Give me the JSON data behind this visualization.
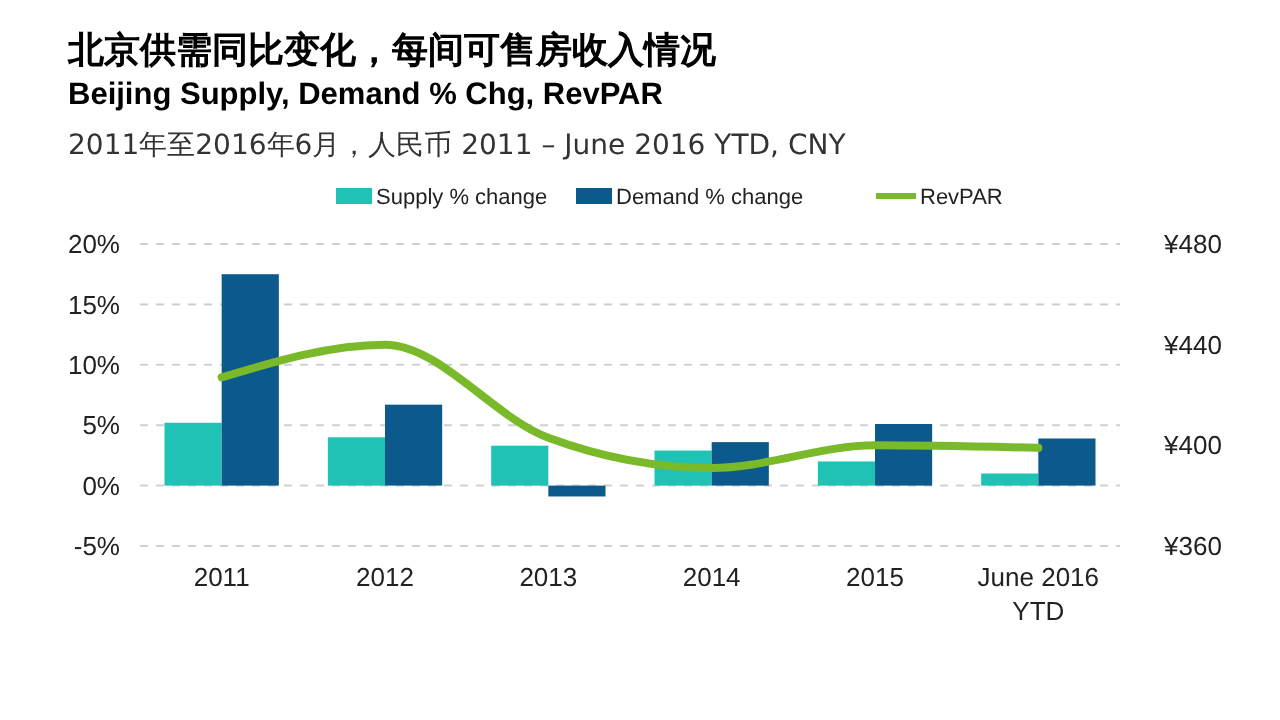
{
  "chart_data": {
    "type": "bar",
    "title": "北京供需同比变化，每间可售房收入情况",
    "subtitle": "Beijing Supply, Demand % Chg, RevPAR",
    "annotations": [
      "2011年至2016年6月，人民币 2011 – June 2016 YTD, CNY"
    ],
    "categories": [
      "2011",
      "2012",
      "2013",
      "2014",
      "2015",
      "June 2016 YTD"
    ],
    "series": [
      {
        "name": "Supply % change",
        "color": "#1fc2b4",
        "values": [
          5.2,
          4.0,
          3.3,
          2.9,
          2.0,
          1.0
        ]
      },
      {
        "name": "Demand % change",
        "color": "#0c5a8c",
        "values": [
          17.5,
          6.7,
          -0.9,
          3.6,
          5.1,
          3.9
        ]
      },
      {
        "name": "RevPAR",
        "type": "line",
        "axis": "y2",
        "color": "#7ab929",
        "values": [
          427,
          440,
          403,
          391,
          400,
          399
        ]
      }
    ],
    "ylim": [
      -5,
      20
    ],
    "yticks": [
      {
        "value": -5,
        "label": "-5%"
      },
      {
        "value": 0,
        "label": "0%"
      },
      {
        "value": 5,
        "label": "5%"
      },
      {
        "value": 10,
        "label": "10%"
      },
      {
        "value": 15,
        "label": "15%"
      },
      {
        "value": 20,
        "label": "20%"
      }
    ],
    "y2lim": [
      360,
      480
    ],
    "y2ticks": [
      {
        "value": 360,
        "label": "¥360"
      },
      {
        "value": 400,
        "label": "¥400"
      },
      {
        "value": 440,
        "label": "¥440"
      },
      {
        "value": 480,
        "label": "¥480"
      }
    ],
    "grid": "y",
    "legend": "top",
    "marker": "none"
  }
}
